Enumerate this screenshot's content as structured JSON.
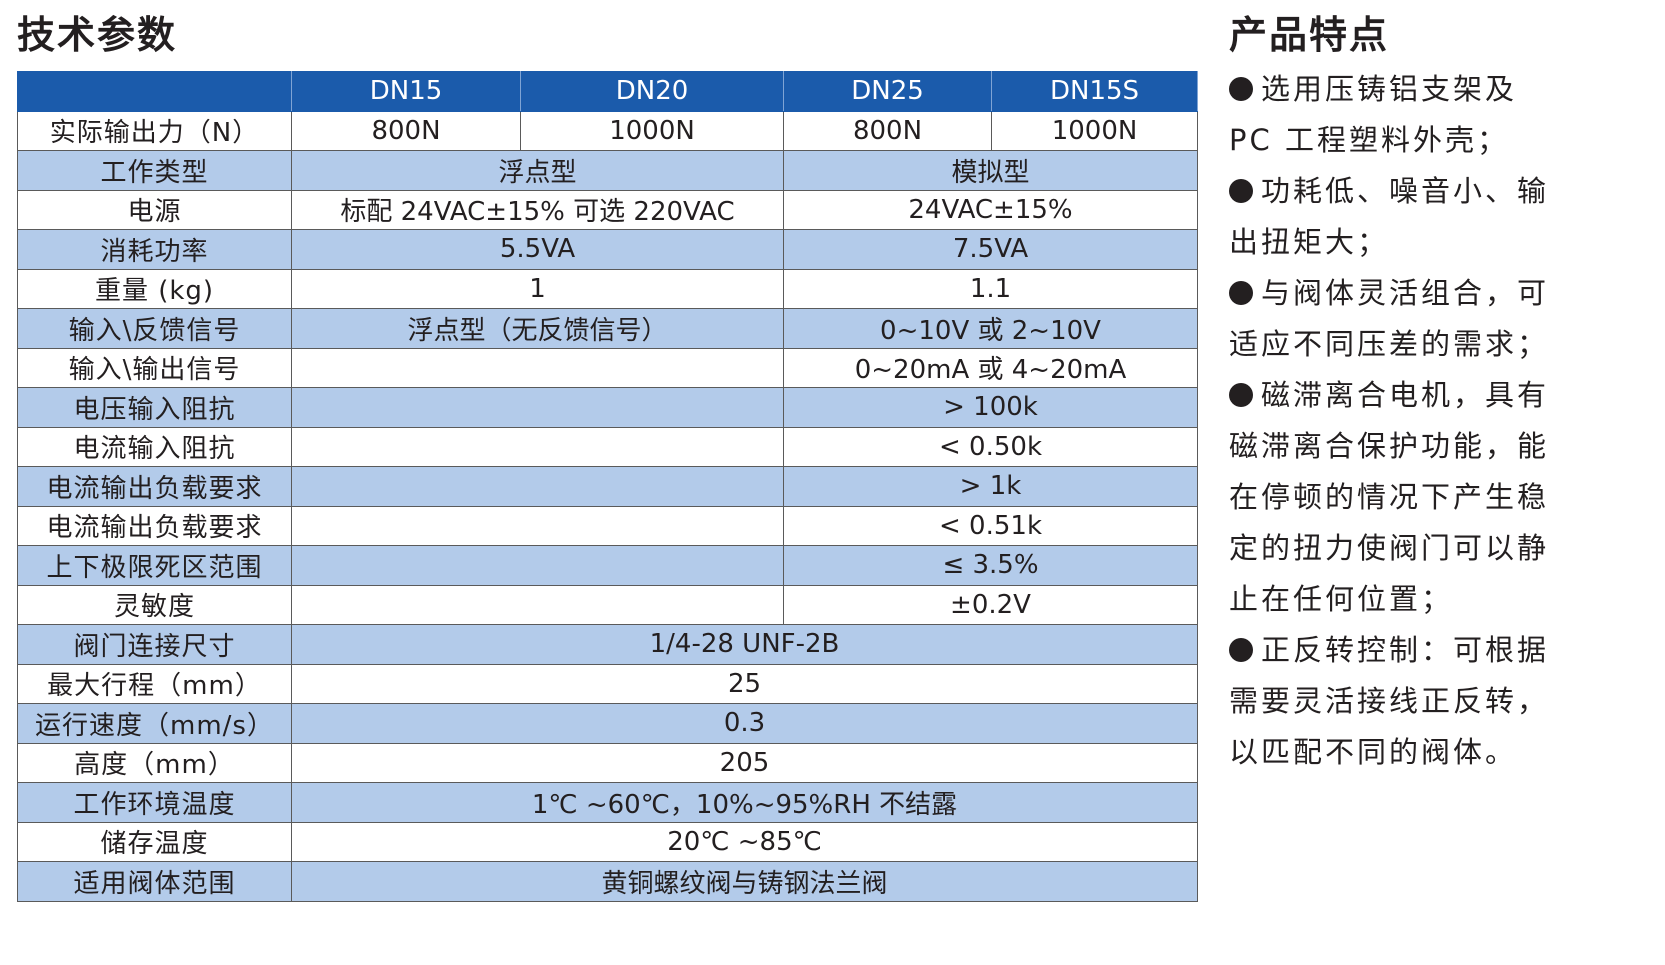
{
  "left_title": "技术参数",
  "right_title": "产品特点",
  "table": {
    "columns": [
      "DN15",
      "DN20",
      "DN25",
      "DN15S"
    ],
    "rows": [
      {
        "label": "实际输出力（N）",
        "cells": [
          "800N",
          "1000N",
          "800N",
          "1000N"
        ]
      },
      {
        "label": "工作类型",
        "a": "浮点型",
        "b": "模拟型"
      },
      {
        "label": "电源",
        "a": "标配 24VAC±15% 可选 220VAC",
        "b": "24VAC±15%"
      },
      {
        "label": "消耗功率",
        "a": "5.5VA",
        "b": "7.5VA"
      },
      {
        "label": "重量 (kg)",
        "a": "1",
        "b": "1.1"
      },
      {
        "label": "输入\\反馈信号",
        "a": "浮点型（无反馈信号）",
        "b": "0~10V 或 2~10V"
      },
      {
        "label": "输入\\输出信号",
        "a": "",
        "b": "0~20mA 或 4~20mA"
      },
      {
        "label": "电压输入阻抗",
        "a": "",
        "b": "> 100k"
      },
      {
        "label": "电流输入阻抗",
        "a": "",
        "b": "< 0.50k"
      },
      {
        "label": "电流输出负载要求",
        "a": "",
        "b": "> 1k"
      },
      {
        "label": "电流输出负载要求",
        "a": "",
        "b": "< 0.51k"
      },
      {
        "label": "上下极限死区范围",
        "a": "",
        "b": "≤ 3.5%"
      },
      {
        "label": "灵敏度",
        "a": "",
        "b": "±0.2V"
      },
      {
        "label": "阀门连接尺寸",
        "all": "1/4-28 UNF-2B"
      },
      {
        "label": "最大行程（mm）",
        "all": "25"
      },
      {
        "label": "运行速度（mm/s）",
        "all": "0.3"
      },
      {
        "label": "高度（mm）",
        "all": "205"
      },
      {
        "label": "工作环境温度",
        "all": "1℃ ~60℃，10%~95%RH 不结露"
      },
      {
        "label": "储存温度",
        "all": "20℃ ~85℃"
      },
      {
        "label": "适用阀体范围",
        "all": "黄铜螺纹阀与铸钢法兰阀"
      }
    ]
  },
  "features": [
    "选用压铸铝支架及PC 工程塑料外壳；",
    "功耗低、噪音小、输出扭矩大；",
    "与阀体灵活组合，可适应不同压差的需求；",
    "磁滞离合电机，具有磁滞离合保护功能，能在停顿的情况下产生稳定的扭力使阀门可以静止在任何位置；",
    "正反转控制：可根据需要灵活接线正反转，以匹配不同的阀体。"
  ],
  "colors": {
    "header_blue": "#1b5bab",
    "row_shade": "#b3cbea",
    "text": "#231f20"
  }
}
